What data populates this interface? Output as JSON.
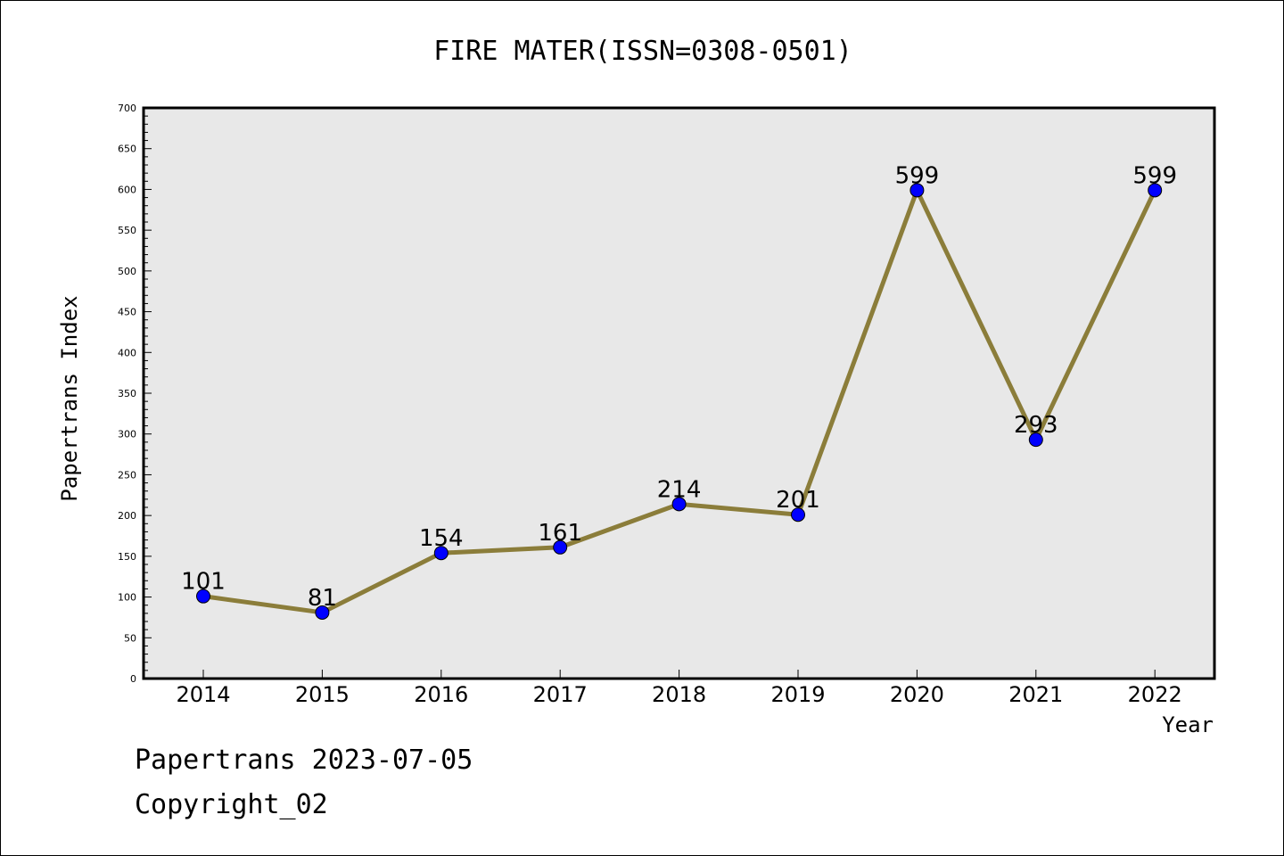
{
  "chart_data": {
    "type": "line",
    "title": "FIRE MATER(ISSN=0308-0501)",
    "xlabel": "Year",
    "ylabel": "Papertrans Index",
    "categories": [
      "2014",
      "2015",
      "2016",
      "2017",
      "2018",
      "2019",
      "2020",
      "2021",
      "2022"
    ],
    "series": [
      {
        "values": [
          101,
          81,
          154,
          161,
          214,
          201,
          599,
          293,
          599
        ]
      }
    ],
    "ylim": [
      0,
      700
    ],
    "yticks": [
      0,
      50,
      100,
      150,
      200,
      250,
      300,
      350,
      400,
      450,
      500,
      550,
      600,
      650,
      700
    ],
    "grid": false,
    "legend": "none",
    "colors": {
      "line": "#8b7d3a",
      "marker": "#0000ff",
      "plot_background": "#e8e8e8"
    }
  },
  "footer": {
    "date_text": "Papertrans 2023-07-05",
    "copyright_text": "Copyright_02"
  }
}
